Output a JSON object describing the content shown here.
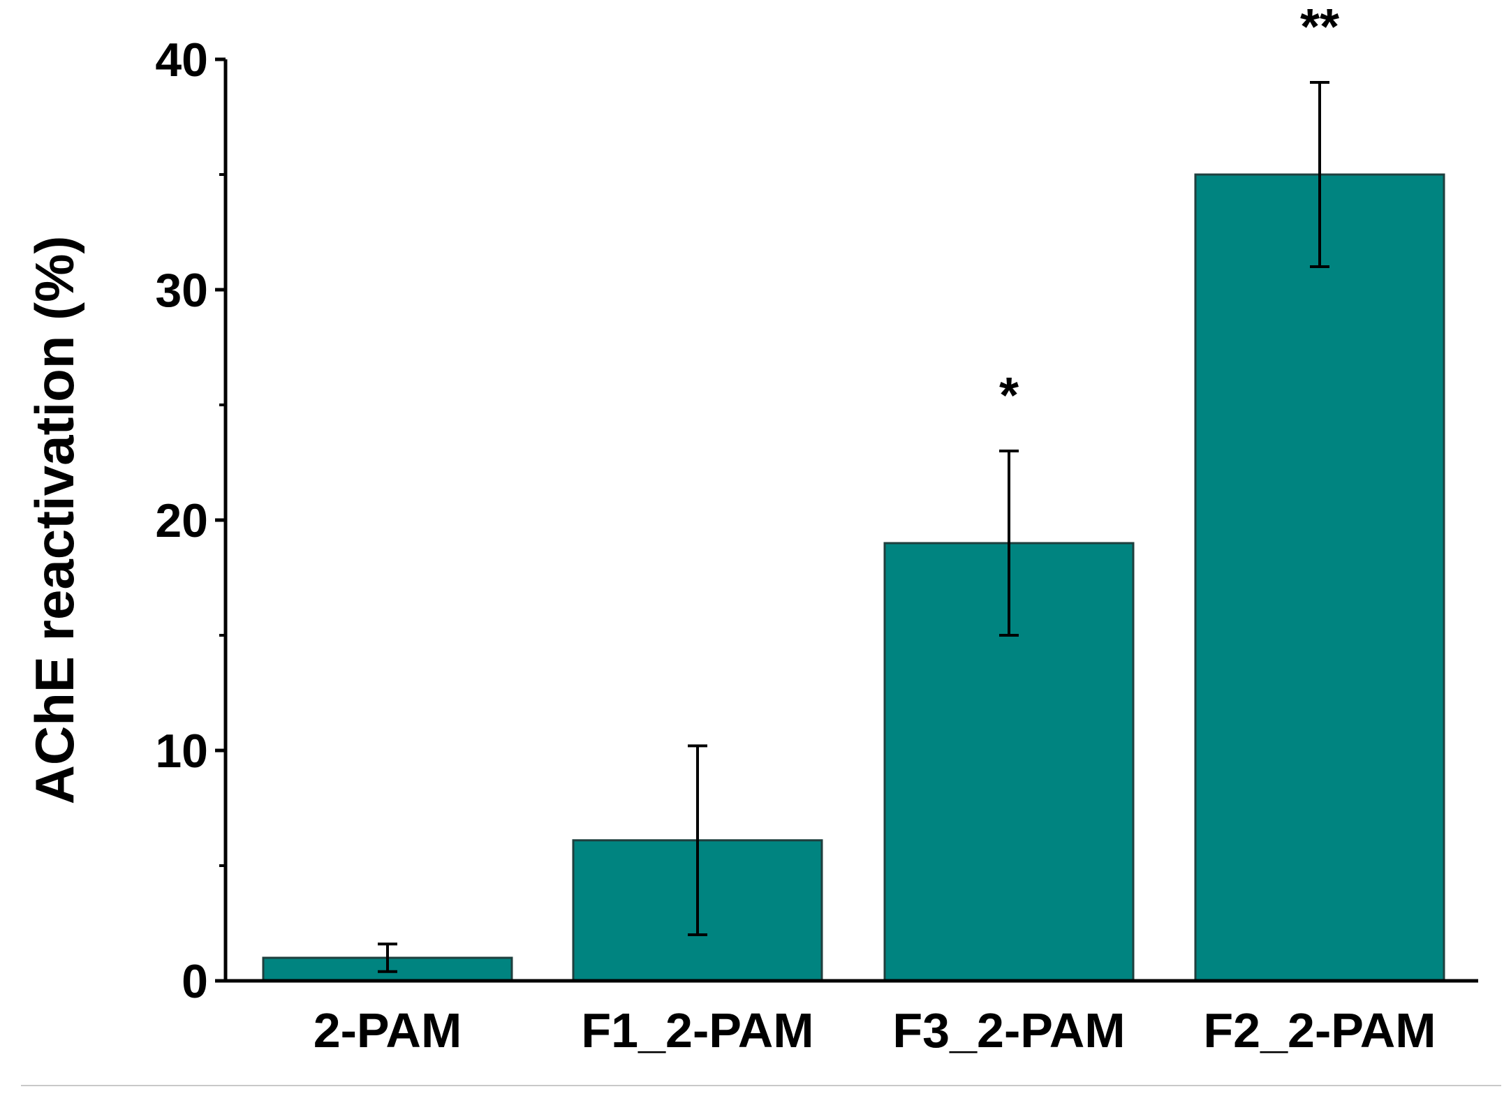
{
  "chart_data": {
    "type": "bar",
    "title": "",
    "xlabel": "",
    "ylabel": "AChE reactivation (%)",
    "categories": [
      "2-PAM",
      "F1_2-PAM",
      "F3_2-PAM",
      "F2_2-PAM"
    ],
    "values": [
      1.0,
      6.1,
      19.0,
      35.0
    ],
    "error_low": [
      0.6,
      4.1,
      4.0,
      4.0
    ],
    "error_high": [
      0.6,
      4.1,
      4.0,
      4.0
    ],
    "annotations": [
      "",
      "",
      "*",
      "**"
    ],
    "ylim": [
      0,
      40
    ],
    "yticks": [
      0,
      10,
      20,
      30,
      40
    ],
    "yticks_minor": [
      5,
      15,
      25,
      35
    ],
    "ytick_labels": [
      "0",
      "10",
      "20",
      "30",
      "40"
    ],
    "grid": false,
    "legend": "none",
    "bar_color": "#008480",
    "edge_color": "#1f3f3e"
  }
}
